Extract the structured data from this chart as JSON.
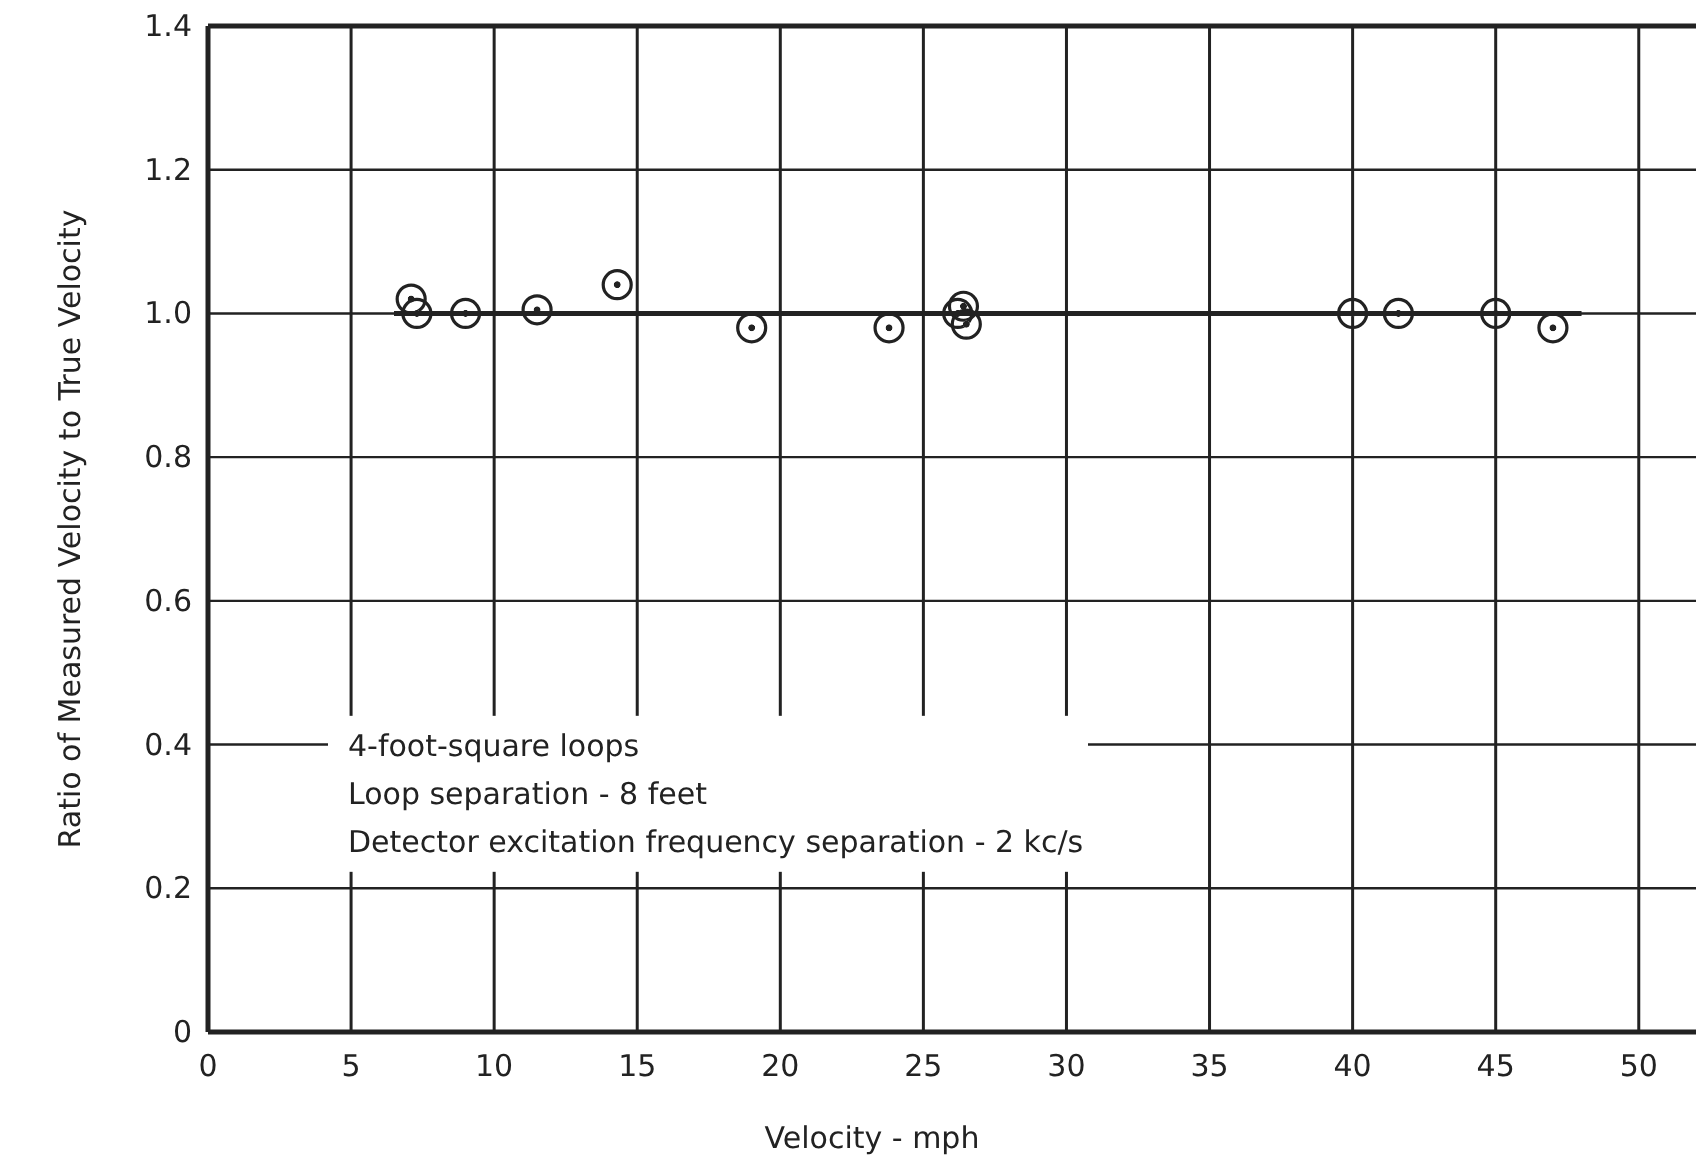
{
  "chart_data": {
    "type": "scatter",
    "xlabel": "Velocity - mph",
    "ylabel": "Ratio of Measured Velocity to True Velocity",
    "xlim": [
      0,
      52
    ],
    "ylim": [
      0,
      1.4
    ],
    "xticks": [
      0,
      5,
      10,
      15,
      20,
      25,
      30,
      35,
      40,
      45,
      50
    ],
    "yticks": [
      0,
      {
        "value": 0.2,
        "label": "0.2"
      },
      {
        "value": 0.4,
        "label": "0.4"
      },
      {
        "value": 0.6,
        "label": "0.6"
      },
      {
        "value": 0.8,
        "label": "0.8"
      },
      {
        "value": 1,
        "label": "1.0"
      },
      {
        "value": 1.2,
        "label": "1.2"
      },
      {
        "value": 1.4,
        "label": "1.4"
      }
    ],
    "grid": true,
    "series": [
      {
        "marker": "circle",
        "color": "#222222",
        "x": [
          7.1,
          7.3,
          9.0,
          11.5,
          14.3,
          19.0,
          23.8,
          26.2,
          26.4,
          26.5,
          40,
          41.6,
          45,
          47
        ],
        "values": [
          1.02,
          1.0,
          1.0,
          1.005,
          1.04,
          0.98,
          0.98,
          1.0,
          1.01,
          0.985,
          1.0,
          1.0,
          1.0,
          0.98
        ]
      },
      {
        "type": "line",
        "color": "#222222",
        "x": [
          6.5,
          48
        ],
        "values": [
          1,
          1
        ],
        "marker": "none"
      }
    ],
    "annotations": [
      "4-foot-square loops",
      "Loop separation - 8 feet",
      "Detector excitation frequency separation - 2 kc/s"
    ]
  }
}
